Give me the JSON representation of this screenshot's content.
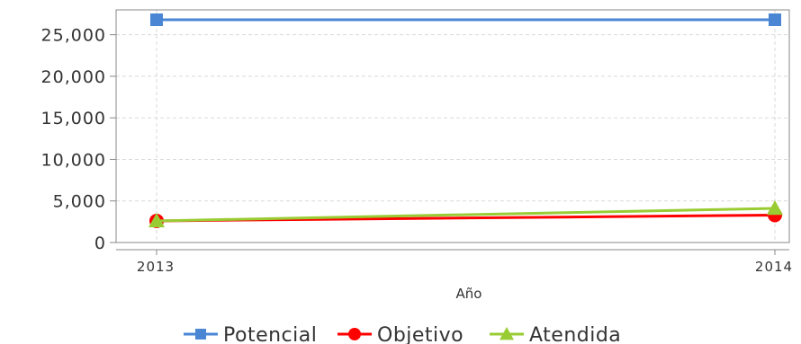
{
  "chart_data": {
    "type": "line",
    "title": "",
    "xlabel": "Año",
    "ylabel": "",
    "categories": [
      "2013",
      "2014"
    ],
    "ylim": [
      0,
      27000
    ],
    "yticks": [
      0,
      5000,
      10000,
      15000,
      20000,
      25000
    ],
    "ytick_labels": [
      "0",
      "5,000",
      "10,000",
      "15,000",
      "20,000",
      "25,000"
    ],
    "grid": true,
    "legend_position": "bottom",
    "series": [
      {
        "name": "Potencial",
        "values": [
          26800,
          26800
        ],
        "color": "#4a86d4",
        "marker": "square"
      },
      {
        "name": "Objetivo",
        "values": [
          2600,
          3300
        ],
        "color": "#ff0000",
        "marker": "circle"
      },
      {
        "name": "Atendida",
        "values": [
          2600,
          4100
        ],
        "color": "#99cc33",
        "marker": "triangle"
      }
    ]
  }
}
